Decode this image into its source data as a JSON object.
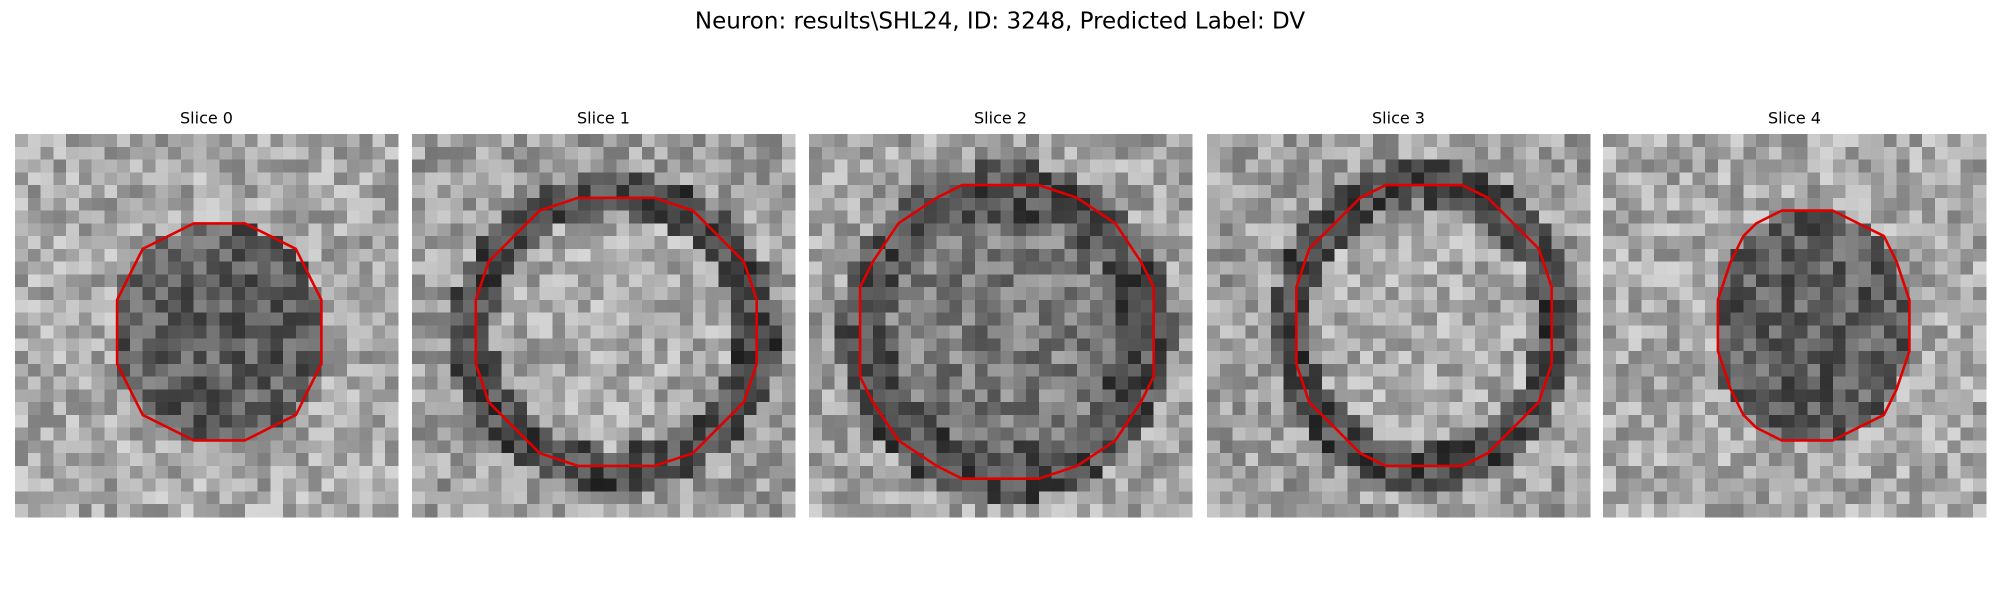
{
  "title": "Neuron: results\\SHL24, ID: 3248, Predicted Label: DV",
  "panels": [
    {
      "title": "Slice 0"
    },
    {
      "title": "Slice 1"
    },
    {
      "title": "Slice 2"
    },
    {
      "title": "Slice 3"
    },
    {
      "title": "Slice 4"
    }
  ]
}
